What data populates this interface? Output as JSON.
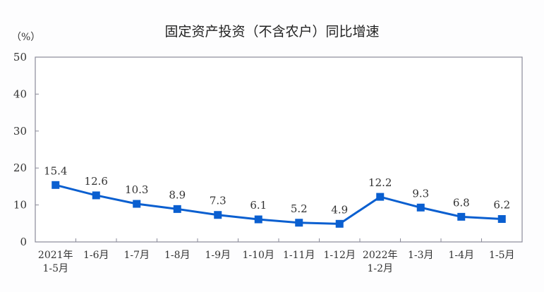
{
  "chart_data": {
    "type": "line",
    "title": "固定资产投资（不含农户）同比增速",
    "ylabel": "（%）",
    "xlabel": "",
    "ylim": [
      0,
      50
    ],
    "yticks": [
      0,
      10,
      20,
      30,
      40,
      50
    ],
    "grid": false,
    "categories": [
      [
        "2021年",
        "1-5月"
      ],
      [
        "1-6月"
      ],
      [
        "1-7月"
      ],
      [
        "1-8月"
      ],
      [
        "1-9月"
      ],
      [
        "1-10月"
      ],
      [
        "1-11月"
      ],
      [
        "1-12月"
      ],
      [
        "2022年",
        "1-2月"
      ],
      [
        "1-3月"
      ],
      [
        "1-4月"
      ],
      [
        "1-5月"
      ]
    ],
    "values": [
      15.4,
      12.6,
      10.3,
      8.9,
      7.3,
      6.1,
      5.2,
      4.9,
      12.2,
      9.3,
      6.8,
      6.2
    ],
    "data_labels": [
      "15.4",
      "12.6",
      "10.3",
      "8.9",
      "7.3",
      "6.1",
      "5.2",
      "4.9",
      "12.2",
      "9.3",
      "6.8",
      "6.2"
    ],
    "colors": {
      "line": "#0a5fd0",
      "axis": "#8a8a99"
    }
  }
}
